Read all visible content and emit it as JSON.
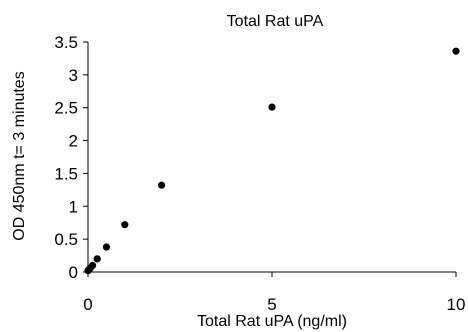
{
  "chart_data": {
    "type": "scatter",
    "title": "Total Rat uPA",
    "xlabel": "Total Rat uPA (ng/ml)",
    "ylabel": "OD 450nm t= 3 minutes",
    "xlim": [
      0,
      10
    ],
    "ylim": [
      0,
      3.5
    ],
    "x_ticks": [
      "0",
      "5",
      "10"
    ],
    "y_ticks": [
      "0",
      "0.5",
      "1",
      "1.5",
      "2",
      "2.5",
      "3",
      "3.5"
    ],
    "x_tick_values": [
      0,
      5,
      10
    ],
    "y_tick_values": [
      0,
      0.5,
      1,
      1.5,
      2,
      2.5,
      3,
      3.5
    ],
    "grid": false,
    "legend": "none",
    "marker_color": "#000000",
    "series": [
      {
        "x": [
          0,
          0.03125,
          0.0625,
          0.125,
          0.25,
          0.5,
          1,
          2,
          5,
          10
        ],
        "y": [
          0.02,
          0.04,
          0.06,
          0.1,
          0.2,
          0.38,
          0.72,
          1.32,
          2.51,
          3.36
        ]
      }
    ]
  }
}
